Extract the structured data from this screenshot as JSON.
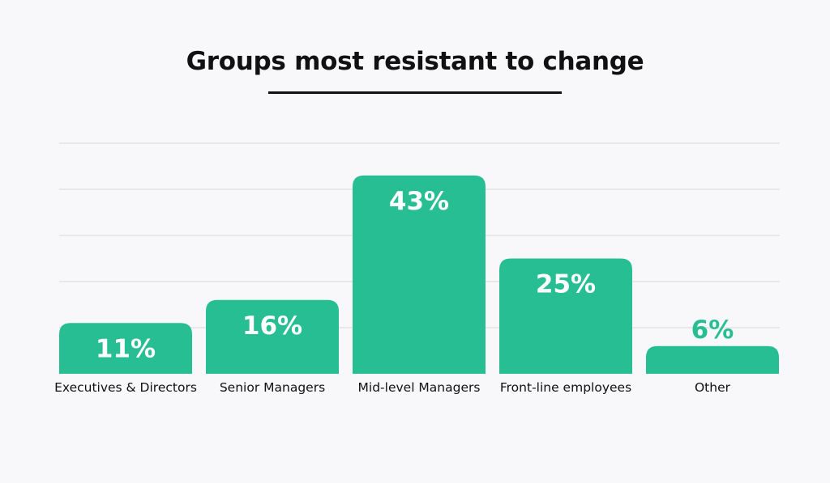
{
  "chart_data": {
    "type": "bar",
    "title": "Groups most resistant to change",
    "xlabel": "",
    "ylabel": "",
    "ylim": [
      0,
      50
    ],
    "grid": true,
    "categories": [
      "Executives & Directors",
      "Senior Managers",
      "Mid-level Managers",
      "Front-line employees",
      "Other"
    ],
    "values": [
      11,
      16,
      43,
      25,
      6
    ],
    "data_labels": [
      "11%",
      "16%",
      "43%",
      "25%",
      "6%"
    ],
    "colors": {
      "bar": "#28be93",
      "label_inside": "#ffffff",
      "label_outside": "#28be93",
      "grid": "#d9d9de",
      "text": "#111111",
      "background": "#f8f8fb"
    }
  }
}
